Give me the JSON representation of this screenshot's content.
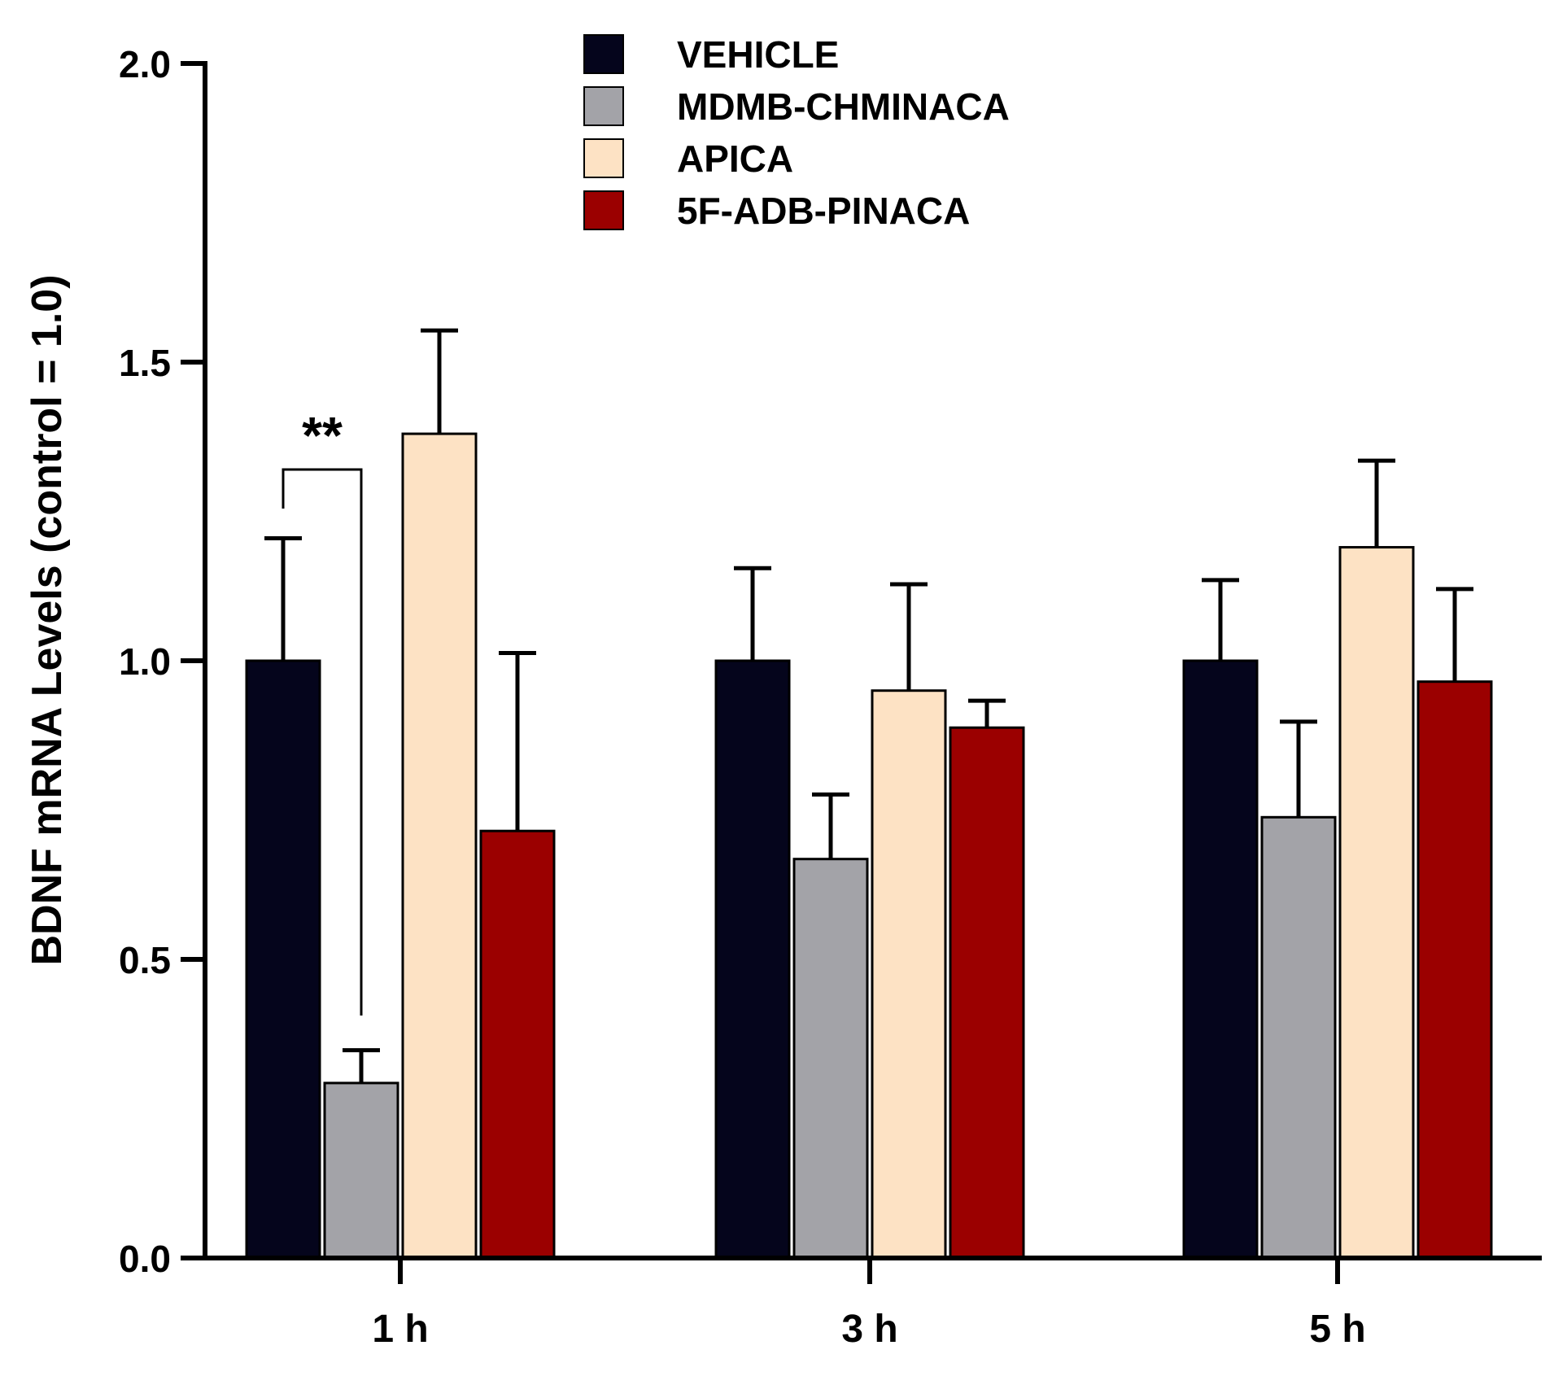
{
  "chart_data": {
    "type": "bar",
    "title": "",
    "xlabel": "",
    "ylabel": "BDNF mRNA Levels (control = 1.0)",
    "ylim": [
      0,
      2.0
    ],
    "yticks": [
      0.0,
      0.5,
      1.0,
      1.5,
      2.0
    ],
    "ytick_labels": [
      "0.0",
      "0.5",
      "1.0",
      "1.5",
      "2.0"
    ],
    "categories": [
      "1 h",
      "3 h",
      "5 h"
    ],
    "series": [
      {
        "name": "VEHICLE",
        "color": "#05051c",
        "values": [
          1.0,
          1.0,
          1.0
        ],
        "errors": [
          0.205,
          0.155,
          0.135
        ]
      },
      {
        "name": "MDMB-CHMINACA",
        "color": "#a3a3a8",
        "values": [
          0.293,
          0.668,
          0.738
        ],
        "errors": [
          0.055,
          0.108,
          0.16
        ]
      },
      {
        "name": "APICA",
        "color": "#fde2c4",
        "values": [
          1.38,
          0.95,
          1.19
        ],
        "errors": [
          0.173,
          0.178,
          0.145
        ]
      },
      {
        "name": "5F-ADB-PINACA",
        "color": "#9b0000",
        "values": [
          0.715,
          0.888,
          0.965
        ],
        "errors": [
          0.298,
          0.045,
          0.155
        ]
      }
    ],
    "legend": {
      "position": "top-center"
    },
    "annotations": [
      {
        "text": "**",
        "category": "1 h",
        "between": [
          "VEHICLE",
          "MDMB-CHMINACA"
        ]
      }
    ],
    "grid": false
  }
}
